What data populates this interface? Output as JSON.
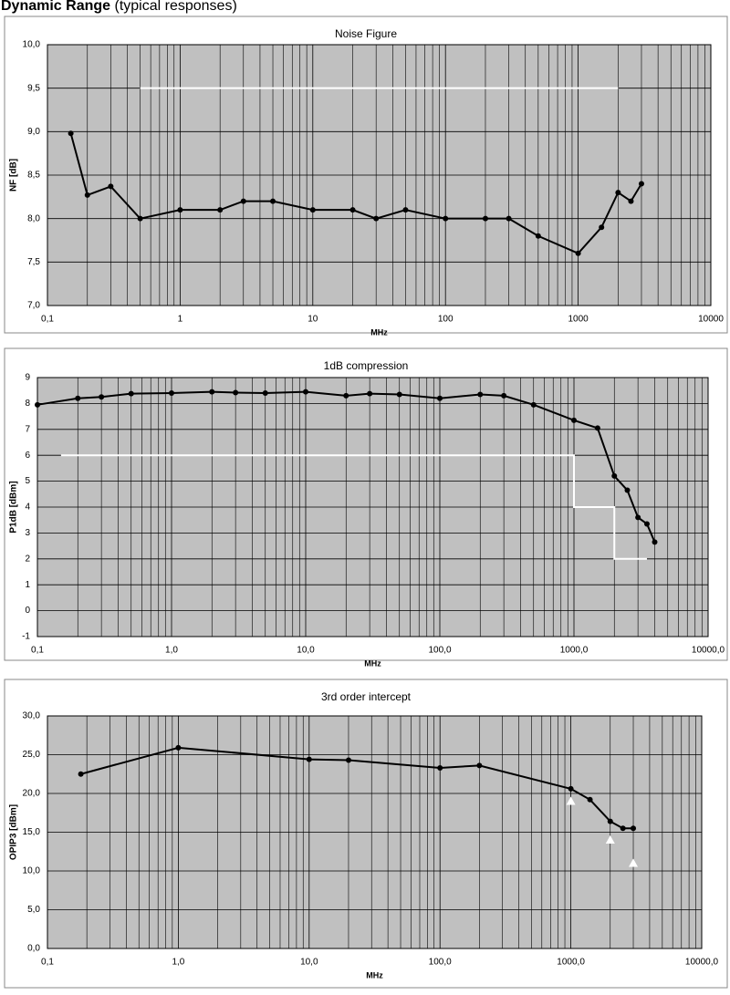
{
  "page_title_bold": "Dynamic Range",
  "page_title_rest": "(typical responses)",
  "chart_data": [
    {
      "type": "line",
      "title": "Noise Figure",
      "x_label": "MHz",
      "y_label": "NF [dB]",
      "xscale": "log",
      "minor_grid": true,
      "grid": true,
      "plot_color": "#c0c0c0",
      "xlim": [
        0.1,
        10000
      ],
      "xticks": [
        {
          "value": 0.1,
          "label": "0,1"
        },
        1,
        10,
        100,
        1000,
        10000
      ],
      "ylim": [
        7.0,
        10.0
      ],
      "yticks": [
        {
          "value": 7.0,
          "label": "7,0"
        },
        {
          "value": 7.5,
          "label": "7,5"
        },
        {
          "value": 8.0,
          "label": "8,0"
        },
        {
          "value": 8.5,
          "label": "8,5"
        },
        {
          "value": 9.0,
          "label": "9,0"
        },
        {
          "value": 9.5,
          "label": "9,5"
        },
        {
          "value": 10.0,
          "label": "10,0"
        }
      ],
      "series": [
        {
          "color": "#000000",
          "marker": "circle",
          "line": true,
          "x": [
            0.15,
            0.2,
            0.3,
            0.5,
            1,
            2,
            3,
            5,
            10,
            20,
            30,
            50,
            100,
            200,
            300,
            500,
            1000,
            1500,
            2000,
            2500,
            3000
          ],
          "values": [
            8.98,
            8.27,
            8.37,
            8.0,
            8.1,
            8.1,
            8.2,
            8.2,
            8.1,
            8.1,
            8.0,
            8.1,
            8.0,
            8.0,
            8.0,
            7.8,
            7.6,
            7.9,
            8.3,
            8.2,
            8.4
          ]
        },
        {
          "color": "#ffffff",
          "marker": "none",
          "line": true,
          "x": [
            0.5,
            2000
          ],
          "values": [
            9.5,
            9.5
          ]
        }
      ]
    },
    {
      "type": "line",
      "title": "1dB compression",
      "x_label": "MHz",
      "y_label": "P1dB [dBm]",
      "xscale": "log",
      "minor_grid": true,
      "grid": true,
      "plot_color": "#c0c0c0",
      "xlim": [
        0.1,
        10000
      ],
      "xticks": [
        {
          "value": 0.1,
          "label": "0,1"
        },
        {
          "value": 1,
          "label": "1,0"
        },
        {
          "value": 10,
          "label": "10,0"
        },
        {
          "value": 100,
          "label": "100,0"
        },
        {
          "value": 1000,
          "label": "1000,0"
        },
        {
          "value": 10000,
          "label": "10000,0"
        }
      ],
      "ylim": [
        -1,
        9
      ],
      "yticks": [
        -1,
        0,
        1,
        2,
        3,
        4,
        5,
        6,
        7,
        8,
        9
      ],
      "series": [
        {
          "color": "#000000",
          "marker": "circle",
          "line": true,
          "x": [
            0.1,
            0.2,
            0.3,
            0.5,
            1,
            2,
            3,
            5,
            10,
            20,
            30,
            50,
            100,
            200,
            300,
            500,
            1000,
            1500,
            2000,
            2500,
            3000,
            3500,
            4000
          ],
          "values": [
            7.95,
            8.2,
            8.25,
            8.38,
            8.4,
            8.45,
            8.42,
            8.4,
            8.45,
            8.3,
            8.38,
            8.35,
            8.2,
            8.35,
            8.3,
            7.95,
            7.35,
            7.05,
            5.2,
            4.65,
            3.6,
            3.35,
            2.65
          ]
        },
        {
          "color": "#ffffff",
          "marker": "none",
          "line": true,
          "x": [
            0.15,
            1000,
            1000,
            2000,
            2000,
            3500
          ],
          "values": [
            6,
            6,
            4,
            4,
            2,
            2
          ]
        }
      ]
    },
    {
      "type": "line",
      "title": "3rd order intercept",
      "x_label": "MHz",
      "y_label": "OPIP3 [dBm]",
      "xscale": "log",
      "minor_grid": true,
      "grid": true,
      "plot_color": "#c0c0c0",
      "xlim": [
        0.1,
        10000
      ],
      "xticks": [
        {
          "value": 0.1,
          "label": "0,1"
        },
        {
          "value": 1,
          "label": "1,0"
        },
        {
          "value": 10,
          "label": "10,0"
        },
        {
          "value": 100,
          "label": "100,0"
        },
        {
          "value": 1000,
          "label": "1000,0"
        },
        {
          "value": 10000,
          "label": "10000,0"
        }
      ],
      "ylim": [
        0,
        30
      ],
      "yticks": [
        {
          "value": 0,
          "label": "0,0"
        },
        {
          "value": 5,
          "label": "5,0"
        },
        {
          "value": 10,
          "label": "10,0"
        },
        {
          "value": 15,
          "label": "15,0"
        },
        {
          "value": 20,
          "label": "20,0"
        },
        {
          "value": 25,
          "label": "25,0"
        },
        {
          "value": 30,
          "label": "30,0"
        }
      ],
      "series": [
        {
          "color": "#000000",
          "marker": "circle",
          "line": true,
          "x": [
            0.18,
            1,
            10,
            20,
            100,
            200,
            1000,
            1400,
            2000,
            2500,
            3000
          ],
          "values": [
            22.5,
            25.9,
            24.4,
            24.3,
            23.3,
            23.6,
            20.6,
            19.2,
            16.4,
            15.5,
            15.5
          ]
        },
        {
          "color": "#ffffff",
          "marker": "triangle",
          "line": false,
          "x": [
            1000,
            2000,
            3000
          ],
          "values": [
            19.0,
            14.0,
            11.0
          ]
        }
      ]
    }
  ]
}
